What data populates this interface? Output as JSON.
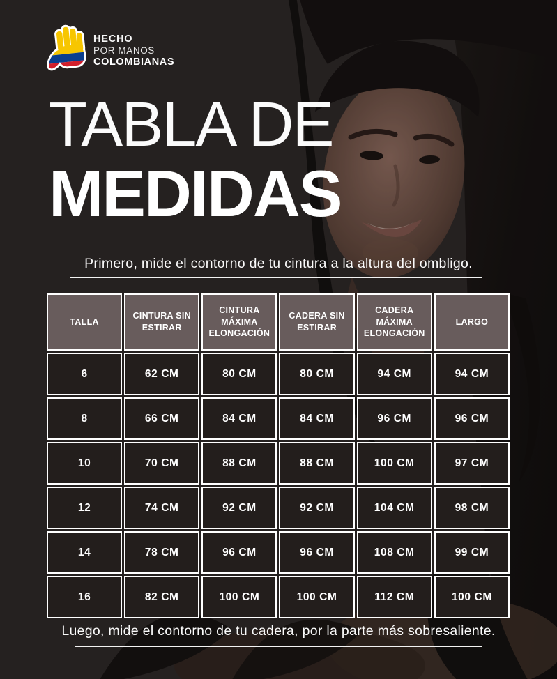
{
  "logo": {
    "icon": "colombian-hand-icon",
    "line1": "HECHO",
    "line2": "POR MANOS",
    "line3": "COLOMBIANAS"
  },
  "title": {
    "line1": "TABLA DE",
    "line2": "MEDIDAS"
  },
  "instructions": {
    "first": "Primero, mide  el contorno de tu cintura a la altura del ombligo.",
    "second": "Luego, mide el contorno de tu cadera, por la parte más sobresaliente."
  },
  "size_table": {
    "columns": [
      "TALLA",
      "CINTURA SIN ESTIRAR",
      "CINTURA MÁXIMA ELONGACIÓN",
      "CADERA SIN ESTIRAR",
      "CADERA MÁXIMA ELONGACIÓN",
      "LARGO"
    ],
    "rows": [
      [
        "6",
        "62 CM",
        "80 CM",
        "80 CM",
        "94 CM",
        "94 CM"
      ],
      [
        "8",
        "66 CM",
        "84 CM",
        "84 CM",
        "96 CM",
        "96 CM"
      ],
      [
        "10",
        "70 CM",
        "88 CM",
        "88 CM",
        "100 CM",
        "97 CM"
      ],
      [
        "12",
        "74 CM",
        "92 CM",
        "92 CM",
        "104 CM",
        "98 CM"
      ],
      [
        "14",
        "78 CM",
        "96 CM",
        "96 CM",
        "108 CM",
        "99 CM"
      ],
      [
        "16",
        "82 CM",
        "100 CM",
        "100 CM",
        "112 CM",
        "100 CM"
      ]
    ]
  },
  "colors": {
    "page_bg": "#262221",
    "header_cell_bg": "#685c5c",
    "data_cell_bg": "#231e1c",
    "cell_border": "#ffffff",
    "text": "#ffffff",
    "flag_yellow": "#f7c600",
    "flag_blue": "#0a3f8f",
    "flag_red": "#d21f2b"
  }
}
